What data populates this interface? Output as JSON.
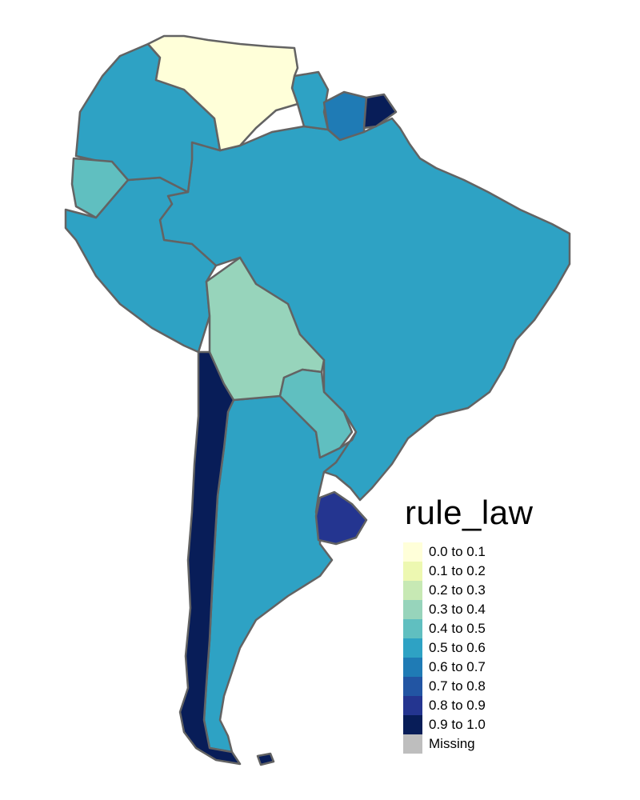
{
  "legend": {
    "title": "rule_law",
    "items": [
      {
        "label": "0.0 to 0.1",
        "color": "#ffffd9"
      },
      {
        "label": "0.1 to 0.2",
        "color": "#edf8b1"
      },
      {
        "label": "0.2 to 0.3",
        "color": "#c7e9b4"
      },
      {
        "label": "0.3 to 0.4",
        "color": "#97d4bb"
      },
      {
        "label": "0.4 to 0.5",
        "color": "#60bfc0"
      },
      {
        "label": "0.5 to 0.6",
        "color": "#2ea2c4"
      },
      {
        "label": "0.6 to 0.7",
        "color": "#1f7bb5"
      },
      {
        "label": "0.7 to 0.8",
        "color": "#2255a3"
      },
      {
        "label": "0.8 to 0.9",
        "color": "#243590"
      },
      {
        "label": "0.9 to 1.0",
        "color": "#081d58"
      },
      {
        "label": "Missing",
        "color": "#bebebe"
      }
    ]
  },
  "map": {
    "border_color": "#636363",
    "regions": [
      {
        "id": "brazil",
        "bin": "0.5 to 0.6"
      },
      {
        "id": "argentina",
        "bin": "0.5 to 0.6"
      },
      {
        "id": "peru",
        "bin": "0.5 to 0.6"
      },
      {
        "id": "colombia",
        "bin": "0.5 to 0.6"
      },
      {
        "id": "guyana",
        "bin": "0.5 to 0.6"
      },
      {
        "id": "venezuela",
        "bin": "0.0 to 0.1"
      },
      {
        "id": "suriname",
        "bin": "0.6 to 0.7"
      },
      {
        "id": "french-guiana",
        "bin": "0.9 to 1.0"
      },
      {
        "id": "ecuador",
        "bin": "0.4 to 0.5"
      },
      {
        "id": "bolivia",
        "bin": "0.3 to 0.4"
      },
      {
        "id": "paraguay",
        "bin": "0.4 to 0.5"
      },
      {
        "id": "uruguay",
        "bin": "0.8 to 0.9"
      },
      {
        "id": "chile",
        "bin": "0.9 to 1.0"
      },
      {
        "id": "falkland-islands",
        "bin": "0.9 to 1.0"
      }
    ]
  }
}
